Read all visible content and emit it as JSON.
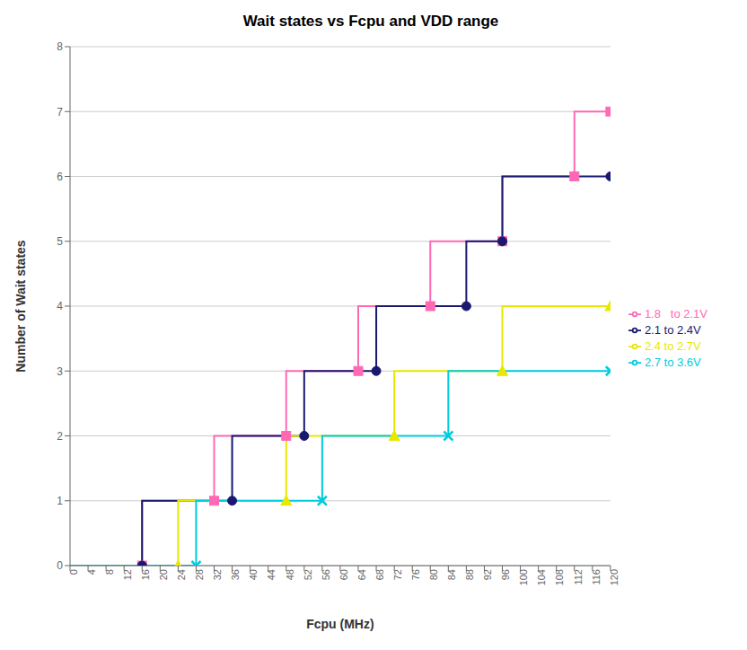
{
  "chart_data": {
    "type": "line",
    "title": "Wait states vs Fcpu and VDD range",
    "xlabel": "Fcpu (MHz)",
    "ylabel": "Number of Wait states",
    "xlim": [
      0,
      120
    ],
    "ylim": [
      0,
      8
    ],
    "xticks": [
      0,
      4,
      8,
      12,
      16,
      20,
      24,
      28,
      32,
      36,
      40,
      44,
      48,
      52,
      56,
      60,
      64,
      68,
      72,
      76,
      80,
      84,
      88,
      92,
      96,
      100,
      104,
      108,
      112,
      116,
      120
    ],
    "yticks": [
      0,
      1,
      2,
      3,
      4,
      5,
      6,
      7,
      8
    ],
    "grid": "y",
    "legend": "right",
    "series": [
      {
        "name": "1.8   to 2.1V",
        "color": "#ff69b4",
        "marker": "square",
        "x": [
          0,
          16,
          16,
          32,
          32,
          48,
          48,
          64,
          64,
          80,
          80,
          96,
          96,
          112,
          112,
          120
        ],
        "values": [
          0,
          0,
          1,
          1,
          2,
          2,
          3,
          3,
          4,
          4,
          5,
          5,
          6,
          6,
          7,
          7
        ]
      },
      {
        "name": "2.1 to 2.4V",
        "color": "#191970",
        "marker": "circle",
        "x": [
          0,
          16,
          16,
          36,
          36,
          52,
          52,
          68,
          68,
          88,
          88,
          96,
          96,
          120
        ],
        "values": [
          0,
          0,
          1,
          1,
          2,
          2,
          3,
          3,
          4,
          4,
          5,
          5,
          6,
          6
        ]
      },
      {
        "name": "2.4 to 2.7V",
        "color": "#e8e800",
        "marker": "triangle",
        "x": [
          0,
          24,
          24,
          48,
          48,
          72,
          72,
          96,
          96,
          120
        ],
        "values": [
          0,
          0,
          1,
          1,
          2,
          2,
          3,
          3,
          4,
          4
        ]
      },
      {
        "name": "2.7 to 3.6V",
        "color": "#00ccdd",
        "marker": "x",
        "x": [
          0,
          28,
          28,
          56,
          56,
          84,
          84,
          120
        ],
        "values": [
          0,
          0,
          1,
          1,
          2,
          2,
          3,
          3
        ]
      }
    ]
  }
}
